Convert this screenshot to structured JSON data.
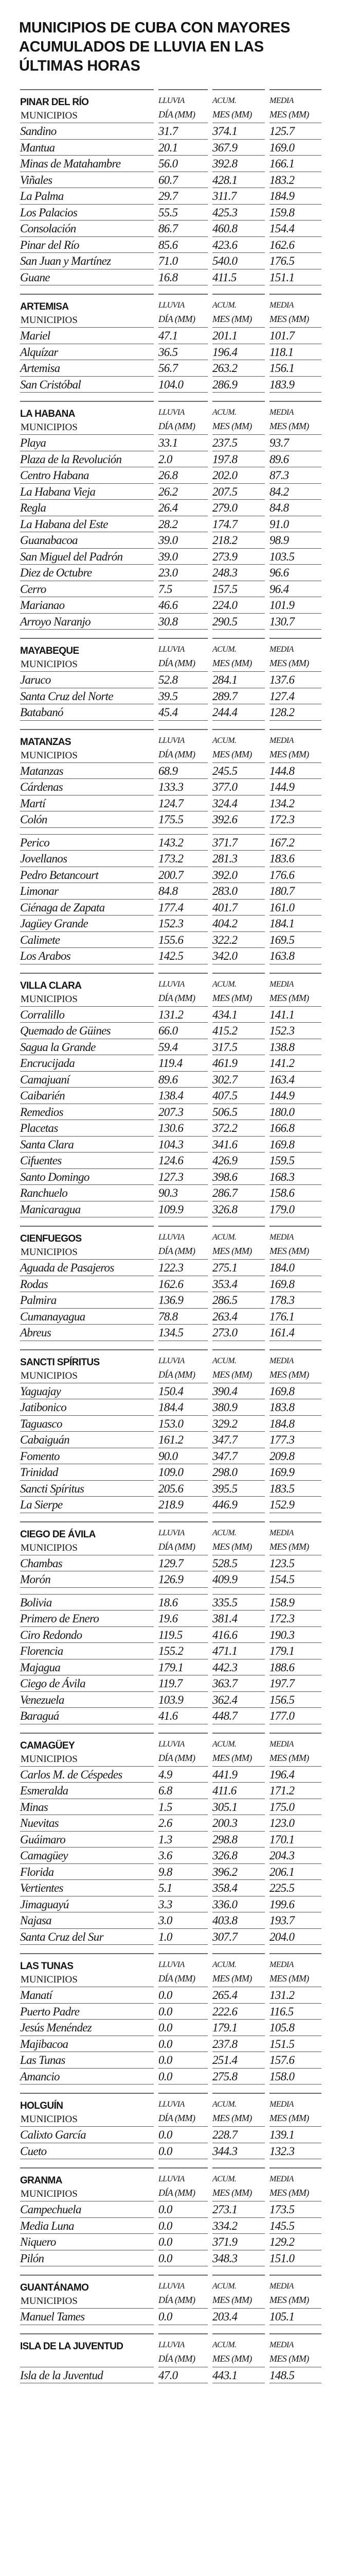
{
  "title": "MUNICIPIOS DE CUBA CON MAYORES ACUMULADOS DE LLUVIA EN LAS ÚLTIMAS HORAS",
  "columns": [
    {
      "line1": "LLUVIA",
      "line2": "DÍA (MM)"
    },
    {
      "line1": "ACUM.",
      "line2": "MES (MM)"
    },
    {
      "line1": "MEDIA",
      "line2": "MES (MM)"
    }
  ],
  "provinces": [
    {
      "name": "PINAR DEL RÍO",
      "subheading": "MUNICIPIOS",
      "groups": [
        [
          {
            "name": "Sandino",
            "dia": "31.7",
            "acum": "374.1",
            "media": "125.7"
          },
          {
            "name": "Mantua",
            "dia": "20.1",
            "acum": "367.9",
            "media": "169.0"
          },
          {
            "name": "Minas de Matahambre",
            "dia": "56.0",
            "acum": "392.8",
            "media": "166.1"
          },
          {
            "name": "Viñales",
            "dia": "60.7",
            "acum": "428.1",
            "media": "183.2"
          },
          {
            "name": "La Palma",
            "dia": "29.7",
            "acum": "311.7",
            "media": "184.9"
          },
          {
            "name": "Los Palacios",
            "dia": "55.5",
            "acum": "425.3",
            "media": "159.8"
          },
          {
            "name": "Consolación",
            "dia": "86.7",
            "acum": "460.8",
            "media": "154.4"
          },
          {
            "name": "Pinar del Río",
            "dia": "85.6",
            "acum": "423.6",
            "media": "162.6"
          },
          {
            "name": "San Juan y Martínez",
            "dia": "71.0",
            "acum": "540.0",
            "media": "176.5"
          },
          {
            "name": "Guane",
            "dia": "16.8",
            "acum": "411.5",
            "media": "151.1"
          }
        ]
      ]
    },
    {
      "name": "ARTEMISA",
      "subheading": "MUNICIPIOS",
      "groups": [
        [
          {
            "name": "Mariel",
            "dia": "47.1",
            "acum": "201.1",
            "media": "101.7"
          },
          {
            "name": "Alquízar",
            "dia": "36.5",
            "acum": "196.4",
            "media": "118.1"
          },
          {
            "name": "Artemisa",
            "dia": "56.7",
            "acum": "263.2",
            "media": "156.1"
          },
          {
            "name": "San Cristóbal",
            "dia": "104.0",
            "acum": "286.9",
            "media": "183.9"
          }
        ]
      ]
    },
    {
      "name": "LA HABANA",
      "subheading": "MUNICIPIOS",
      "groups": [
        [
          {
            "name": "Playa",
            "dia": "33.1",
            "acum": "237.5",
            "media": "93.7"
          },
          {
            "name": "Plaza de la Revolución",
            "dia": "2.0",
            "acum": "197.8",
            "media": "89.6"
          },
          {
            "name": "Centro Habana",
            "dia": "26.8",
            "acum": "202.0",
            "media": "87.3"
          },
          {
            "name": "La Habana Vieja",
            "dia": "26.2",
            "acum": "207.5",
            "media": "84.2"
          },
          {
            "name": "Regla",
            "dia": "26.4",
            "acum": "279.0",
            "media": "84.8"
          },
          {
            "name": "La Habana del Este",
            "dia": "28.2",
            "acum": "174.7",
            "media": "91.0"
          },
          {
            "name": "Guanabacoa",
            "dia": "39.0",
            "acum": "218.2",
            "media": "98.9"
          },
          {
            "name": "San Miguel del Padrón",
            "dia": "39.0",
            "acum": "273.9",
            "media": "103.5"
          },
          {
            "name": "Diez de Octubre",
            "dia": "23.0",
            "acum": "248.3",
            "media": "96.6"
          },
          {
            "name": "Cerro",
            "dia": "7.5",
            "acum": "157.5",
            "media": "96.4"
          },
          {
            "name": "Marianao",
            "dia": "46.6",
            "acum": "224.0",
            "media": "101.9"
          },
          {
            "name": "Arroyo Naranjo",
            "dia": "30.8",
            "acum": "290.5",
            "media": "130.7"
          }
        ]
      ]
    },
    {
      "name": "MAYABEQUE",
      "subheading": "MUNICIPIOS",
      "groups": [
        [
          {
            "name": "Jaruco",
            "dia": "52.8",
            "acum": "284.1",
            "media": "137.6"
          },
          {
            "name": "Santa Cruz del Norte",
            "dia": "39.5",
            "acum": "289.7",
            "media": "127.4"
          },
          {
            "name": "Batabanó",
            "dia": "45.4",
            "acum": "244.4",
            "media": "128.2"
          }
        ]
      ]
    },
    {
      "name": "MATANZAS",
      "subheading": "MUNICIPIOS",
      "groups": [
        [
          {
            "name": "Matanzas",
            "dia": "68.9",
            "acum": "245.5",
            "media": "144.8"
          },
          {
            "name": "Cárdenas",
            "dia": "133.3",
            "acum": "377.0",
            "media": "144.9"
          },
          {
            "name": "Martí",
            "dia": "124.7",
            "acum": "324.4",
            "media": "134.2"
          },
          {
            "name": "Colón",
            "dia": "175.5",
            "acum": "392.6",
            "media": "172.3"
          }
        ],
        [
          {
            "name": "Perico",
            "dia": "143.2",
            "acum": "371.7",
            "media": "167.2"
          },
          {
            "name": "Jovellanos",
            "dia": "173.2",
            "acum": "281.3",
            "media": "183.6"
          },
          {
            "name": "Pedro Betancourt",
            "dia": "200.7",
            "acum": "392.0",
            "media": "176.6"
          },
          {
            "name": "Limonar",
            "dia": "84.8",
            "acum": "283.0",
            "media": "180.7"
          },
          {
            "name": "Ciénaga de Zapata",
            "dia": "177.4",
            "acum": "401.7",
            "media": "161.0"
          },
          {
            "name": "Jagüey Grande",
            "dia": "152.3",
            "acum": "404.2",
            "media": "184.1"
          },
          {
            "name": "Calimete",
            "dia": "155.6",
            "acum": "322.2",
            "media": "169.5"
          },
          {
            "name": "Los Arabos",
            "dia": "142.5",
            "acum": "342.0",
            "media": "163.8"
          }
        ]
      ]
    },
    {
      "name": "VILLA CLARA",
      "subheading": "MUNICIPIOS",
      "groups": [
        [
          {
            "name": "Corralillo",
            "dia": "131.2",
            "acum": "434.1",
            "media": "141.1"
          },
          {
            "name": "Quemado de Güines",
            "dia": "66.0",
            "acum": "415.2",
            "media": "152.3"
          },
          {
            "name": "Sagua la Grande",
            "dia": "59.4",
            "acum": "317.5",
            "media": "138.8"
          },
          {
            "name": "Encrucijada",
            "dia": "119.4",
            "acum": "461.9",
            "media": "141.2"
          },
          {
            "name": "Camajuaní",
            "dia": "89.6",
            "acum": "302.7",
            "media": "163.4"
          },
          {
            "name": "Caibarién",
            "dia": "138.4",
            "acum": "407.5",
            "media": "144.9"
          },
          {
            "name": "Remedios",
            "dia": "207.3",
            "acum": "506.5",
            "media": "180.0"
          },
          {
            "name": "Placetas",
            "dia": "130.6",
            "acum": "372.2",
            "media": "166.8"
          },
          {
            "name": "Santa Clara",
            "dia": "104.3",
            "acum": "341.6",
            "media": "169.8"
          },
          {
            "name": "Cifuentes",
            "dia": "124.6",
            "acum": "426.9",
            "media": "159.5"
          },
          {
            "name": "Santo Domingo",
            "dia": "127.3",
            "acum": "398.6",
            "media": "168.3"
          },
          {
            "name": "Ranchuelo",
            "dia": "90.3",
            "acum": "286.7",
            "media": "158.6"
          },
          {
            "name": "Manicaragua",
            "dia": "109.9",
            "acum": "326.8",
            "media": "179.0"
          }
        ]
      ]
    },
    {
      "name": "CIENFUEGOS",
      "subheading": "MUNICIPIOS",
      "groups": [
        [
          {
            "name": "Aguada de Pasajeros",
            "dia": "122.3",
            "acum": "275.1",
            "media": "184.0"
          },
          {
            "name": "Rodas",
            "dia": "162.6",
            "acum": "353.4",
            "media": "169.8"
          },
          {
            "name": "Palmira",
            "dia": "136.9",
            "acum": "286.5",
            "media": "178.3"
          },
          {
            "name": "Cumanayagua",
            "dia": "78.8",
            "acum": "263.4",
            "media": "176.1"
          },
          {
            "name": "Abreus",
            "dia": "134.5",
            "acum": "273.0",
            "media": "161.4"
          }
        ]
      ]
    },
    {
      "name": "SANCTI SPÍRITUS",
      "subheading": "MUNICIPIOS",
      "groups": [
        [
          {
            "name": "Yaguajay",
            "dia": "150.4",
            "acum": "390.4",
            "media": "169.8"
          },
          {
            "name": "Jatibonico",
            "dia": "184.4",
            "acum": "380.9",
            "media": "183.8"
          },
          {
            "name": "Taguasco",
            "dia": "153.0",
            "acum": "329.2",
            "media": "184.8"
          },
          {
            "name": "Cabaiguán",
            "dia": "161.2",
            "acum": "347.7",
            "media": "177.3"
          },
          {
            "name": "Fomento",
            "dia": "90.0",
            "acum": "347.7",
            "media": "209.8"
          },
          {
            "name": "Trinidad",
            "dia": "109.0",
            "acum": "298.0",
            "media": "169.9"
          },
          {
            "name": "Sancti Spíritus",
            "dia": "205.6",
            "acum": "395.5",
            "media": "183.5"
          },
          {
            "name": "La Sierpe",
            "dia": "218.9",
            "acum": "446.9",
            "media": "152.9"
          }
        ]
      ]
    },
    {
      "name": "CIEGO DE ÁVILA",
      "subheading": "MUNICIPIOS",
      "groups": [
        [
          {
            "name": "Chambas",
            "dia": "129.7",
            "acum": "528.5",
            "media": "123.5"
          },
          {
            "name": "Morón",
            "dia": "126.9",
            "acum": "409.9",
            "media": "154.5"
          }
        ],
        [
          {
            "name": "Bolivia",
            "dia": "18.6",
            "acum": "335.5",
            "media": "158.9"
          },
          {
            "name": "Primero de Enero",
            "dia": "19.6",
            "acum": "381.4",
            "media": "172.3"
          },
          {
            "name": "Ciro Redondo",
            "dia": "119.5",
            "acum": "416.6",
            "media": "190.3"
          },
          {
            "name": "Florencia",
            "dia": "155.2",
            "acum": "471.1",
            "media": "179.1"
          },
          {
            "name": "Majagua",
            "dia": "179.1",
            "acum": "442.3",
            "media": "188.6"
          },
          {
            "name": "Ciego de Ávila",
            "dia": "119.7",
            "acum": "363.7",
            "media": "197.7"
          },
          {
            "name": "Venezuela",
            "dia": "103.9",
            "acum": "362.4",
            "media": "156.5"
          },
          {
            "name": "Baraguá",
            "dia": "41.6",
            "acum": "448.7",
            "media": "177.0"
          }
        ]
      ]
    },
    {
      "name": "CAMAGÜEY",
      "subheading": "MUNICIPIOS",
      "groups": [
        [
          {
            "name": "Carlos M. de Céspedes",
            "dia": "4.9",
            "acum": "441.9",
            "media": "196.4"
          },
          {
            "name": "Esmeralda",
            "dia": "6.8",
            "acum": "411.6",
            "media": "171.2"
          },
          {
            "name": "Minas",
            "dia": "1.5",
            "acum": "305.1",
            "media": "175.0"
          },
          {
            "name": "Nuevitas",
            "dia": "2.6",
            "acum": "200.3",
            "media": "123.0"
          },
          {
            "name": "Guáimaro",
            "dia": "1.3",
            "acum": "298.8",
            "media": "170.1"
          },
          {
            "name": "Camagüey",
            "dia": "3.6",
            "acum": "326.8",
            "media": "204.3"
          },
          {
            "name": "Florida",
            "dia": "9.8",
            "acum": "396.2",
            "media": "206.1"
          },
          {
            "name": "Vertientes",
            "dia": "5.1",
            "acum": "358.4",
            "media": "225.5"
          },
          {
            "name": "Jimaguayú",
            "dia": "3.3",
            "acum": "336.0",
            "media": "199.6"
          },
          {
            "name": "Najasa",
            "dia": "3.0",
            "acum": "403.8",
            "media": "193.7"
          },
          {
            "name": "Santa Cruz del Sur",
            "dia": "1.0",
            "acum": "307.7",
            "media": "204.0"
          }
        ]
      ]
    },
    {
      "name": "LAS TUNAS",
      "subheading": "MUNICIPIOS",
      "groups": [
        [
          {
            "name": "Manatí",
            "dia": "0.0",
            "acum": "265.4",
            "media": "131.2"
          },
          {
            "name": "Puerto Padre",
            "dia": "0.0",
            "acum": "222.6",
            "media": "116.5"
          },
          {
            "name": "Jesús Menéndez",
            "dia": "0.0",
            "acum": "179.1",
            "media": "105.8"
          },
          {
            "name": "Majibacoa",
            "dia": "0.0",
            "acum": "237.8",
            "media": "151.5"
          },
          {
            "name": "Las Tunas",
            "dia": "0.0",
            "acum": "251.4",
            "media": "157.6"
          },
          {
            "name": "Amancio",
            "dia": "0.0",
            "acum": "275.8",
            "media": "158.0"
          }
        ]
      ]
    },
    {
      "name": "HOLGUÍN",
      "subheading": "MUNICIPIOS",
      "groups": [
        [
          {
            "name": "Calixto García",
            "dia": "0.0",
            "acum": "228.7",
            "media": "139.1"
          },
          {
            "name": "Cueto",
            "dia": "0.0",
            "acum": "344.3",
            "media": "132.3"
          }
        ]
      ]
    },
    {
      "name": "GRANMA",
      "subheading": "MUNICIPIOS",
      "groups": [
        [
          {
            "name": "Campechuela",
            "dia": "0.0",
            "acum": "273.1",
            "media": "173.5"
          },
          {
            "name": "Media Luna",
            "dia": "0.0",
            "acum": "334.2",
            "media": "145.5"
          },
          {
            "name": "Niquero",
            "dia": "0.0",
            "acum": "371.9",
            "media": "129.2"
          },
          {
            "name": "Pilón",
            "dia": "0.0",
            "acum": "348.3",
            "media": "151.0"
          }
        ]
      ]
    },
    {
      "name": "GUANTÁNAMO",
      "subheading": "MUNICIPIOS",
      "groups": [
        [
          {
            "name": "Manuel Tames",
            "dia": "0.0",
            "acum": "203.4",
            "media": "105.1"
          }
        ]
      ]
    },
    {
      "name": "ISLA DE LA JUVENTUD",
      "subheading": "",
      "groups": [
        [
          {
            "name": "Isla de la Juventud",
            "dia": "47.0",
            "acum": "443.1",
            "media": "148.5"
          }
        ]
      ]
    }
  ]
}
